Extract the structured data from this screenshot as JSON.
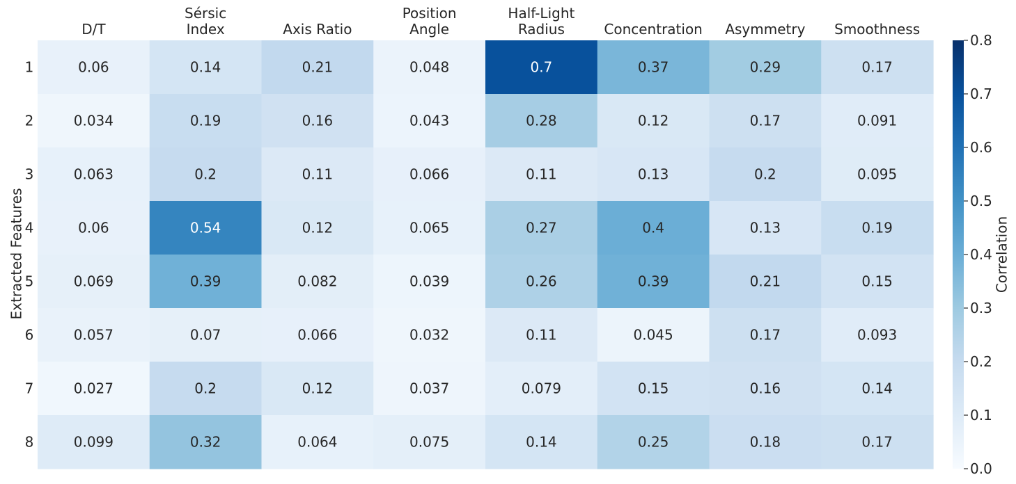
{
  "chart_data": {
    "type": "heatmap",
    "title": "",
    "xlabel": "",
    "ylabel": "Extracted Features",
    "columns": [
      [
        "D/T"
      ],
      [
        "Sérsic",
        "Index"
      ],
      [
        "Axis Ratio"
      ],
      [
        "Position",
        "Angle"
      ],
      [
        "Half-Light",
        "Radius"
      ],
      [
        "Concentration"
      ],
      [
        "Asymmetry"
      ],
      [
        "Smoothness"
      ]
    ],
    "rows": [
      "1",
      "2",
      "3",
      "4",
      "5",
      "6",
      "7",
      "8"
    ],
    "values": [
      [
        "0.06",
        "0.14",
        "0.21",
        "0.048",
        "0.7",
        "0.37",
        "0.29",
        "0.17"
      ],
      [
        "0.034",
        "0.19",
        "0.16",
        "0.043",
        "0.28",
        "0.12",
        "0.17",
        "0.091"
      ],
      [
        "0.063",
        "0.2",
        "0.11",
        "0.066",
        "0.11",
        "0.13",
        "0.2",
        "0.095"
      ],
      [
        "0.06",
        "0.54",
        "0.12",
        "0.065",
        "0.27",
        "0.4",
        "0.13",
        "0.19"
      ],
      [
        "0.069",
        "0.39",
        "0.082",
        "0.039",
        "0.26",
        "0.39",
        "0.21",
        "0.15"
      ],
      [
        "0.057",
        "0.07",
        "0.066",
        "0.032",
        "0.11",
        "0.045",
        "0.17",
        "0.093"
      ],
      [
        "0.027",
        "0.2",
        "0.12",
        "0.037",
        "0.079",
        "0.15",
        "0.16",
        "0.14"
      ],
      [
        "0.099",
        "0.32",
        "0.064",
        "0.075",
        "0.14",
        "0.25",
        "0.18",
        "0.17"
      ]
    ],
    "colorbar": {
      "label": "Correlation",
      "range": [
        0,
        0.8
      ],
      "ticks": [
        "0.0",
        "0.1",
        "0.2",
        "0.3",
        "0.4",
        "0.5",
        "0.6",
        "0.7",
        "0.8"
      ],
      "colormap": "Blues"
    }
  }
}
